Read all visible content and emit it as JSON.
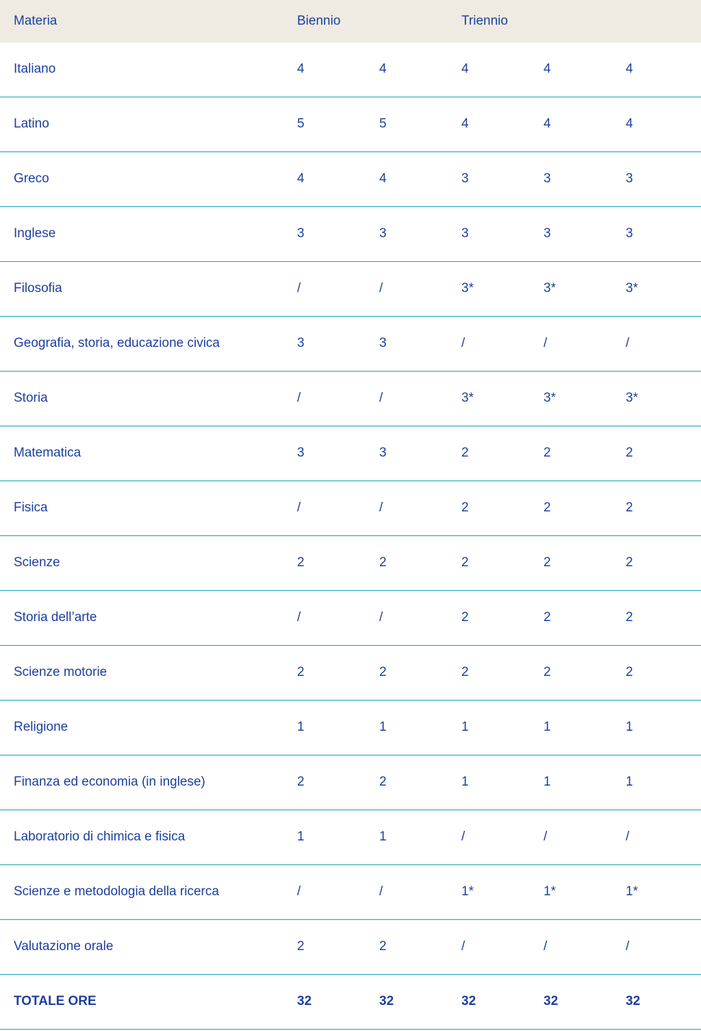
{
  "table": {
    "header": {
      "materia": "Materia",
      "biennio": "Biennio",
      "triennio": "Triennio"
    },
    "rows": [
      {
        "materia": "Italiano",
        "values": [
          "4",
          "4",
          "4",
          "4",
          "4"
        ],
        "bold": false
      },
      {
        "materia": "Latino",
        "values": [
          "5",
          "5",
          "4",
          "4",
          "4"
        ],
        "bold": false
      },
      {
        "materia": "Greco",
        "values": [
          "4",
          "4",
          "3",
          "3",
          "3"
        ],
        "bold": false
      },
      {
        "materia": "Inglese",
        "values": [
          "3",
          "3",
          "3",
          "3",
          "3"
        ],
        "bold": false
      },
      {
        "materia": "Filosofia",
        "values": [
          "/",
          "/",
          "3*",
          "3*",
          "3*"
        ],
        "bold": false
      },
      {
        "materia": "Geografia, storia, educazione civica",
        "values": [
          "3",
          "3",
          "/",
          "/",
          "/"
        ],
        "bold": false
      },
      {
        "materia": "Storia",
        "values": [
          "/",
          "/",
          "3*",
          "3*",
          "3*"
        ],
        "bold": false
      },
      {
        "materia": "Matematica",
        "values": [
          "3",
          "3",
          "2",
          "2",
          "2"
        ],
        "bold": false
      },
      {
        "materia": "Fisica",
        "values": [
          "/",
          "/",
          "2",
          "2",
          "2"
        ],
        "bold": false
      },
      {
        "materia": "Scienze",
        "values": [
          "2",
          "2",
          "2",
          "2",
          "2"
        ],
        "bold": false
      },
      {
        "materia": "Storia dell’arte",
        "values": [
          "/",
          "/",
          "2",
          "2",
          "2"
        ],
        "bold": false
      },
      {
        "materia": "Scienze motorie",
        "values": [
          "2",
          "2",
          "2",
          "2",
          "2"
        ],
        "bold": false
      },
      {
        "materia": "Religione",
        "values": [
          "1",
          "1",
          "1",
          "1",
          "1"
        ],
        "bold": false
      },
      {
        "materia": "Finanza ed economia (in inglese)",
        "values": [
          "2",
          "2",
          "1",
          "1",
          "1"
        ],
        "bold": false
      },
      {
        "materia": "Laboratorio di chimica e fisica",
        "values": [
          "1",
          "1",
          "/",
          "/",
          "/"
        ],
        "bold": false
      },
      {
        "materia": "Scienze e metodologia della ricerca",
        "values": [
          "/",
          "/",
          "1*",
          "1*",
          "1*"
        ],
        "bold": false
      },
      {
        "materia": "Valutazione orale",
        "values": [
          "2",
          "2",
          "/",
          "/",
          "/"
        ],
        "bold": false
      },
      {
        "materia": "TOTALE ORE",
        "values": [
          "32",
          "32",
          "32",
          "32",
          "32"
        ],
        "bold": true
      }
    ],
    "colors": {
      "text_blue": "#1c3f9f",
      "header_background": "#efebe2",
      "row_border_teal": "#10a3b2",
      "page_background": "#ffffff"
    }
  },
  "chart_data": {
    "type": "table",
    "title": "",
    "columns": [
      "Materia",
      "Biennio 1",
      "Biennio 2",
      "Triennio 1",
      "Triennio 2",
      "Triennio 3"
    ],
    "rows": [
      [
        "Italiano",
        "4",
        "4",
        "4",
        "4",
        "4"
      ],
      [
        "Latino",
        "5",
        "5",
        "4",
        "4",
        "4"
      ],
      [
        "Greco",
        "4",
        "4",
        "3",
        "3",
        "3"
      ],
      [
        "Inglese",
        "3",
        "3",
        "3",
        "3",
        "3"
      ],
      [
        "Filosofia",
        "/",
        "/",
        "3*",
        "3*",
        "3*"
      ],
      [
        "Geografia, storia, educazione civica",
        "3",
        "3",
        "/",
        "/",
        "/"
      ],
      [
        "Storia",
        "/",
        "/",
        "3*",
        "3*",
        "3*"
      ],
      [
        "Matematica",
        "3",
        "3",
        "2",
        "2",
        "2"
      ],
      [
        "Fisica",
        "/",
        "/",
        "2",
        "2",
        "2"
      ],
      [
        "Scienze",
        "2",
        "2",
        "2",
        "2",
        "2"
      ],
      [
        "Storia dell’arte",
        "/",
        "/",
        "2",
        "2",
        "2"
      ],
      [
        "Scienze motorie",
        "2",
        "2",
        "2",
        "2",
        "2"
      ],
      [
        "Religione",
        "1",
        "1",
        "1",
        "1",
        "1"
      ],
      [
        "Finanza ed economia (in inglese)",
        "2",
        "2",
        "1",
        "1",
        "1"
      ],
      [
        "Laboratorio di chimica e fisica",
        "1",
        "1",
        "/",
        "/",
        "/"
      ],
      [
        "Scienze e metodologia della ricerca",
        "/",
        "/",
        "1*",
        "1*",
        "1*"
      ],
      [
        "Valutazione orale",
        "2",
        "2",
        "/",
        "/",
        "/"
      ],
      [
        "TOTALE ORE",
        "32",
        "32",
        "32",
        "32",
        "32"
      ]
    ]
  }
}
